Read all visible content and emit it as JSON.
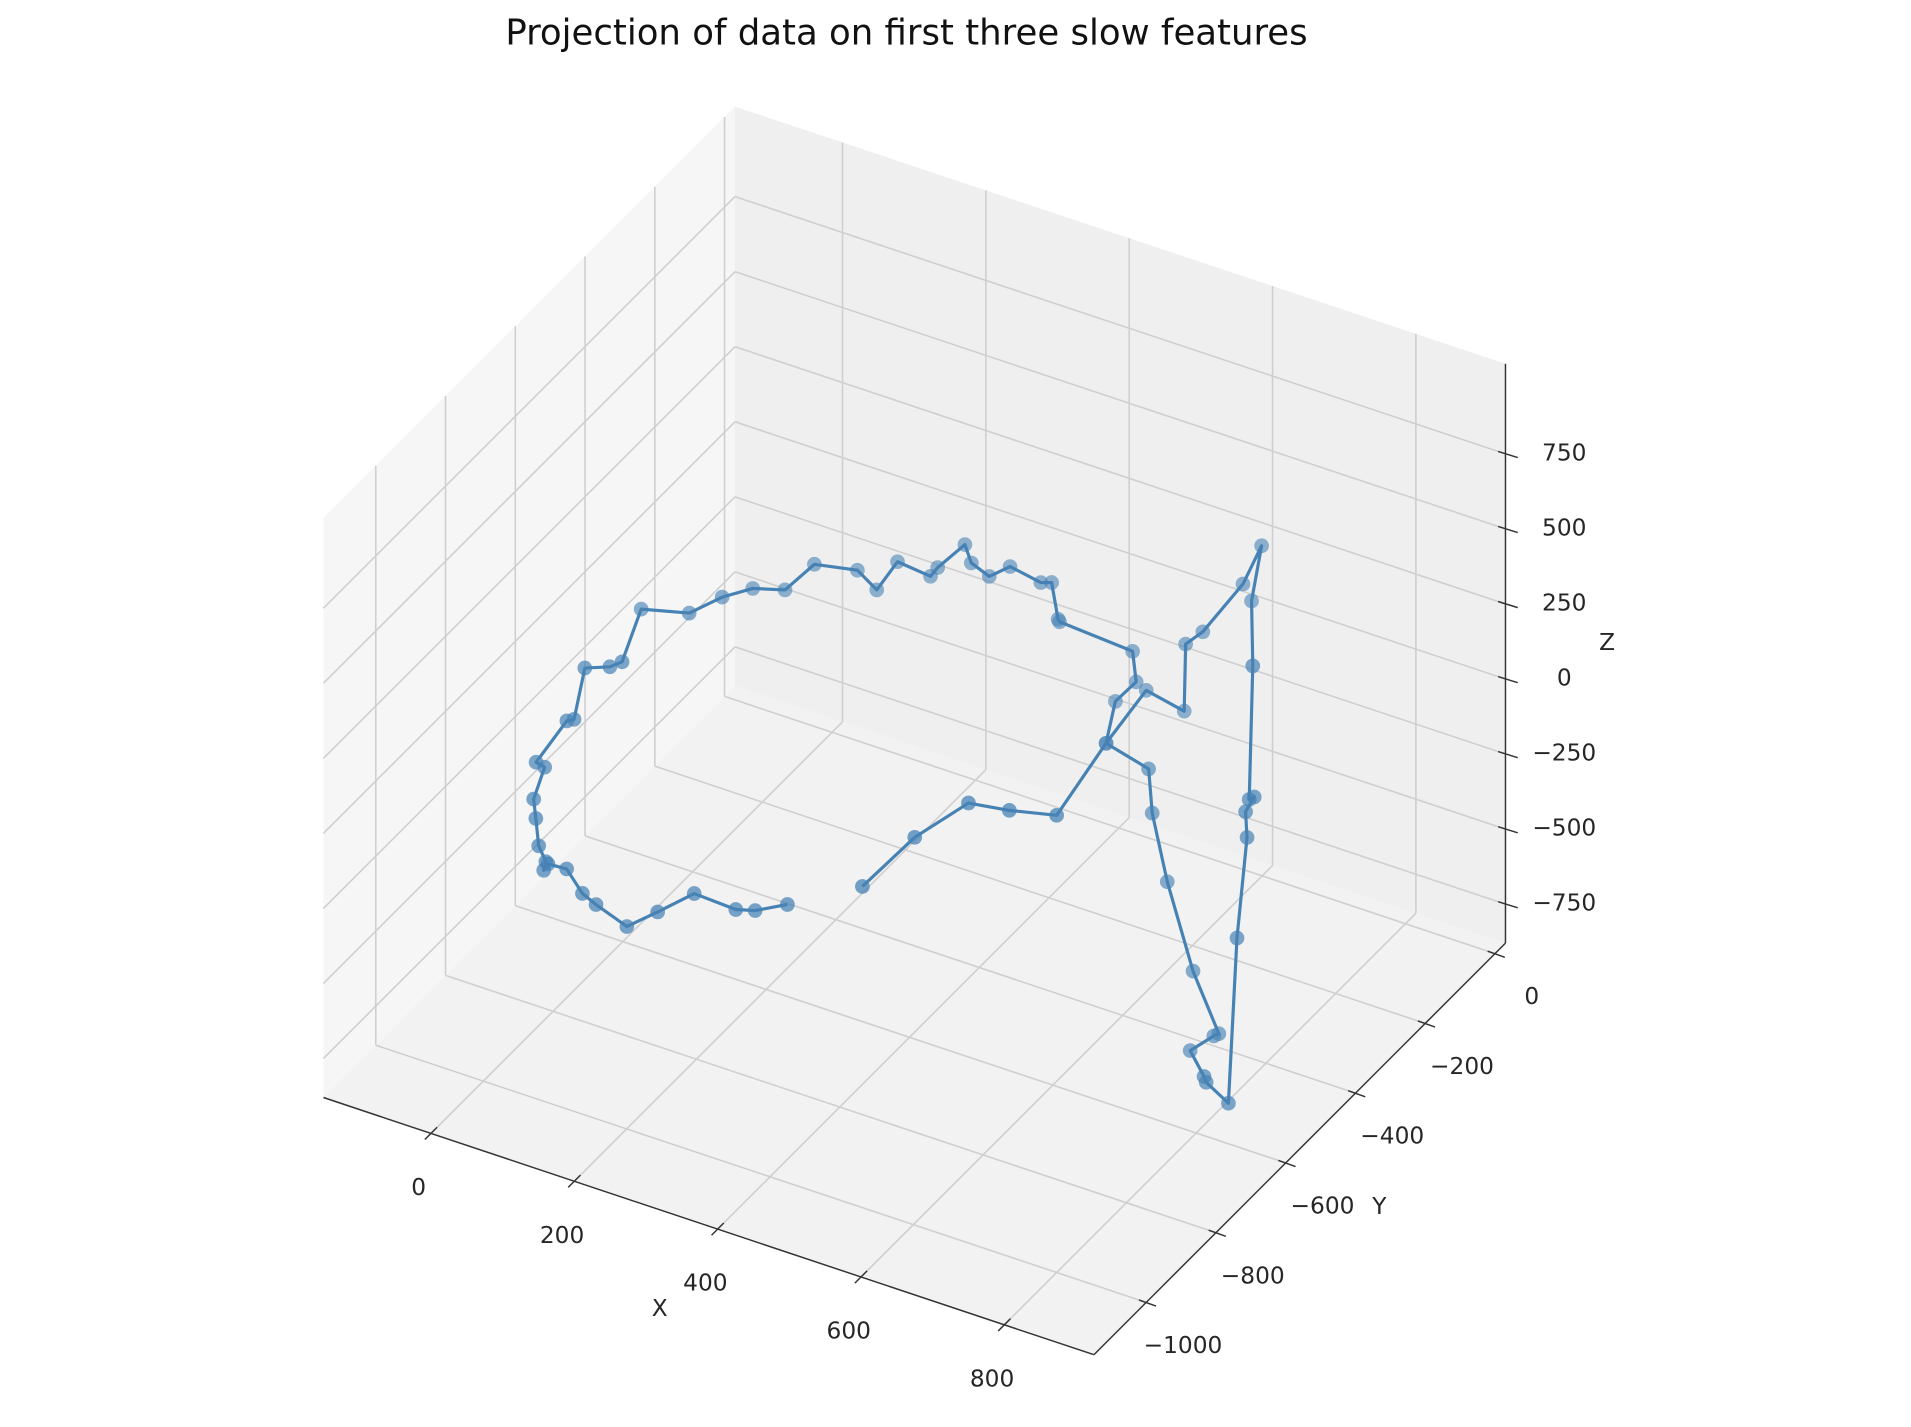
{
  "chart_data": {
    "type": "line3d",
    "title": "Projection of data on first three slow features",
    "xlabel": "X",
    "ylabel": "Y",
    "zlabel": "Z",
    "xlim": [
      -150,
      925
    ],
    "ylim": [
      -1150,
      30
    ],
    "zlim": [
      -880,
      1050
    ],
    "xticks": [
      0,
      200,
      400,
      600,
      800
    ],
    "yticks": [
      {
        "value": -1000,
        "label": "−1000"
      },
      {
        "value": -800,
        "label": "−800"
      },
      {
        "value": -600,
        "label": "−600"
      },
      {
        "value": -400,
        "label": "−400"
      },
      {
        "value": -200,
        "label": "−200"
      },
      0
    ],
    "zticks": [
      {
        "value": -750,
        "label": "−750"
      },
      {
        "value": -500,
        "label": "−500"
      },
      {
        "value": -250,
        "label": "−250"
      },
      0,
      250,
      500,
      750
    ],
    "grid": true,
    "series": [
      {
        "color": "#4682b4",
        "x": [
          254,
          209,
          182,
          124,
          73,
          30,
          -13,
          -32,
          -54,
          -80,
          -86,
          -83,
          -93,
          -97,
          -100,
          -109,
          -121,
          -78,
          -68,
          -53,
          -18,
          -1,
          -23,
          44,
          90,
          84,
          129,
          170,
          230,
          257,
          286,
          332,
          342,
          380,
          389,
          414,
          443,
          486,
          501,
          510,
          512,
          614,
          619,
          590,
          577,
          685,
          690,
          711,
          747,
          783,
          776,
          743,
          811,
          814,
          845,
          857,
          871,
          869,
          881,
          874,
          879,
          780,
          794,
          768,
          712,
          688,
          686,
          633,
          577,
          654,
          588,
          531,
          456,
          383
        ],
        "y": [
          -650,
          -650,
          -650,
          -650,
          -650,
          -650,
          -650,
          -650,
          -650,
          -650,
          -650,
          -650,
          -650,
          -650,
          -650,
          -600,
          -600,
          -600,
          -600,
          -600,
          -600,
          -600,
          -500,
          -500,
          -500,
          -400,
          -400,
          -400,
          -400,
          -400,
          -400,
          -400,
          -400,
          -400,
          -400,
          -400,
          -400,
          -400,
          -400,
          -400,
          -400,
          -400,
          -400,
          -400,
          -400,
          -500,
          -500,
          -500,
          -500,
          -500,
          -500,
          -500,
          -600,
          -600,
          -600,
          -600,
          -600,
          -600,
          -600,
          -600,
          -600,
          -400,
          -400,
          -400,
          -400,
          -400,
          -400,
          -400,
          -400,
          -700,
          -700,
          -700,
          -700,
          -700
        ],
        "z": [
          -496,
          -552,
          -570,
          -563,
          -665,
          -748,
          -709,
          -687,
          -623,
          -627,
          -653,
          -622,
          -577,
          -489,
          -427,
          -386,
          -379,
          -207,
          -194,
          -11,
          21,
          51,
          93,
          133,
          223,
          131,
          162,
          280,
          308,
          264,
          381,
          369,
          406,
          513,
          459,
          434,
          490,
          471,
          483,
          368,
          361,
          344,
          246,
          158,
          8,
          125,
          -18,
          -230,
          -499,
          -679,
          -692,
          -767,
          -683,
          -700,
          -745,
          -185,
          161,
          245,
          304,
          290,
          739,
          644,
          839,
          691,
          487,
          427,
          202,
          229,
          8,
          178,
          142,
          121,
          -53,
          -275
        ]
      }
    ]
  }
}
